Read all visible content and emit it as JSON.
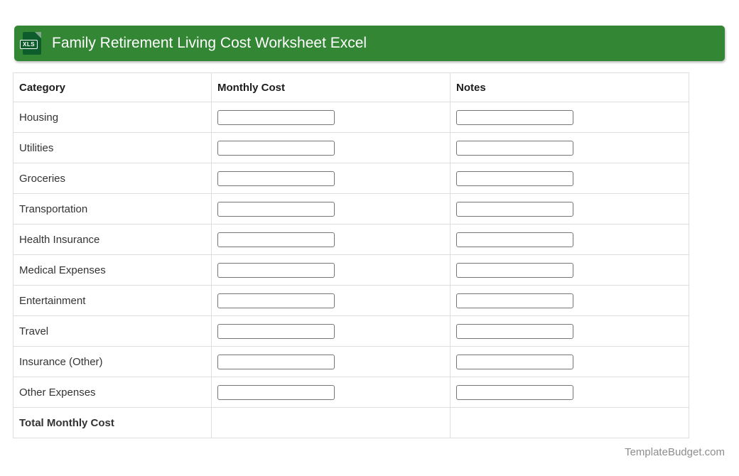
{
  "banner": {
    "title": "Family Retirement Living Cost Worksheet Excel",
    "icon_label": "XLS",
    "bg_color": "#338734",
    "icon_color": "#0d5c2b"
  },
  "table": {
    "columns": [
      {
        "label": "Category"
      },
      {
        "label": "Monthly Cost"
      },
      {
        "label": "Notes"
      }
    ],
    "rows": [
      {
        "category": "Housing",
        "monthly_cost": "",
        "notes": ""
      },
      {
        "category": "Utilities",
        "monthly_cost": "",
        "notes": ""
      },
      {
        "category": "Groceries",
        "monthly_cost": "",
        "notes": ""
      },
      {
        "category": "Transportation",
        "monthly_cost": "",
        "notes": ""
      },
      {
        "category": "Health Insurance",
        "monthly_cost": "",
        "notes": ""
      },
      {
        "category": "Medical Expenses",
        "monthly_cost": "",
        "notes": ""
      },
      {
        "category": "Entertainment",
        "monthly_cost": "",
        "notes": ""
      },
      {
        "category": "Travel",
        "monthly_cost": "",
        "notes": ""
      },
      {
        "category": "Insurance (Other)",
        "monthly_cost": "",
        "notes": ""
      },
      {
        "category": "Other Expenses",
        "monthly_cost": "",
        "notes": ""
      }
    ],
    "total_label": "Total Monthly Cost"
  },
  "footer": {
    "site": "TemplateBudget.com"
  }
}
